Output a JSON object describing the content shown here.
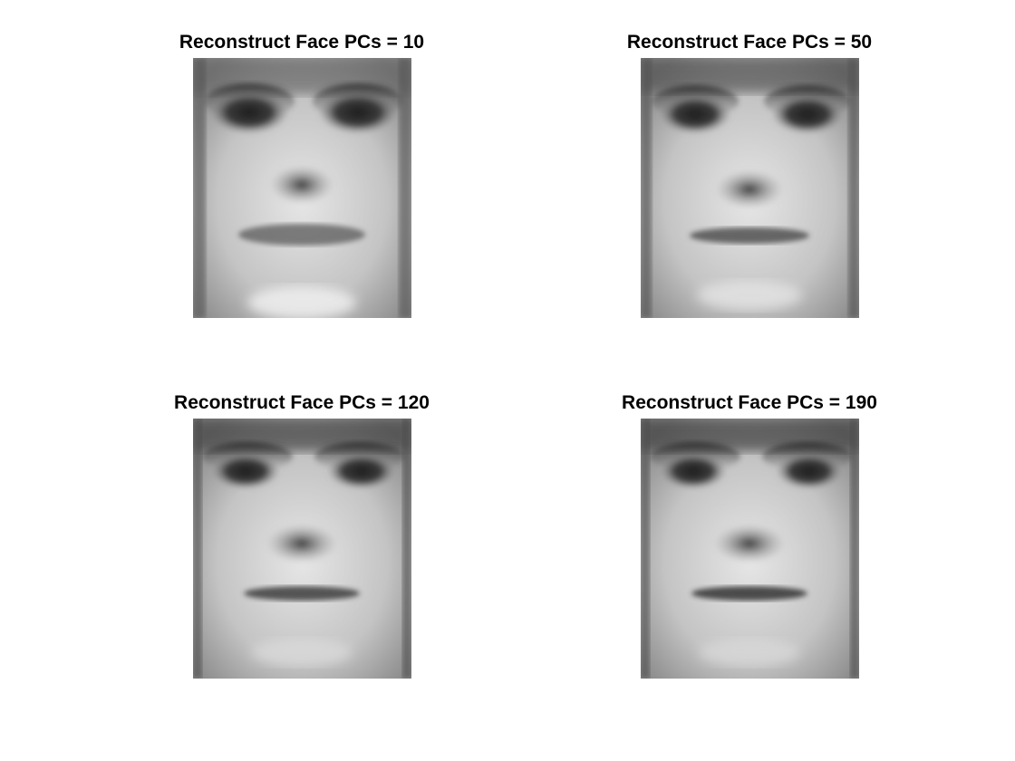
{
  "figure": {
    "panels": [
      {
        "title": "Reconstruct Face PCs = 10",
        "pcs": 10,
        "image": "reconstructed-face-grayscale"
      },
      {
        "title": "Reconstruct Face PCs = 50",
        "pcs": 50,
        "image": "reconstructed-face-grayscale"
      },
      {
        "title": "Reconstruct Face PCs = 120",
        "pcs": 120,
        "image": "reconstructed-face-grayscale"
      },
      {
        "title": "Reconstruct Face PCs = 190",
        "pcs": 190,
        "image": "reconstructed-face-grayscale"
      }
    ]
  }
}
